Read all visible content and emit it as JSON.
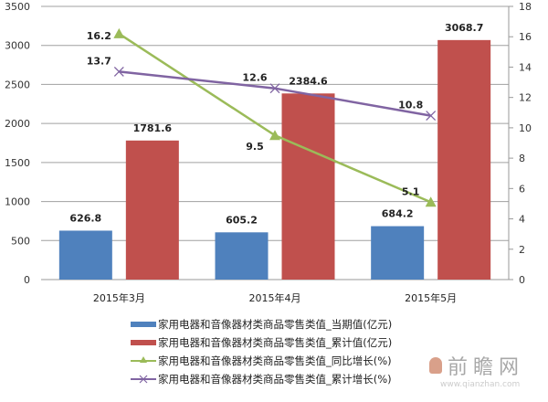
{
  "chart_data": {
    "type": "bar+line",
    "title": "",
    "categories": [
      "2015年3月",
      "2015年4月",
      "2015年5月"
    ],
    "series": [
      {
        "name": "家用电器和音像器材类商品零售类值_当期值(亿元)",
        "type": "bar",
        "axis": "left",
        "color": "#4F81BD",
        "values": [
          626.8,
          605.2,
          684.2
        ]
      },
      {
        "name": "家用电器和音像器材类商品零售类值_累计值(亿元)",
        "type": "bar",
        "axis": "left",
        "color": "#C0504D",
        "values": [
          1781.6,
          2384.6,
          3068.7
        ]
      },
      {
        "name": "家用电器和音像器材类商品零售类值_同比增长(%)",
        "type": "line",
        "axis": "right",
        "color": "#9BBB59",
        "marker": "triangle",
        "values": [
          16.2,
          9.5,
          5.1
        ]
      },
      {
        "name": "家用电器和音像器材类商品零售类值_累计增长(%)",
        "type": "line",
        "axis": "right",
        "color": "#8064A2",
        "marker": "x",
        "values": [
          13.7,
          12.6,
          10.8
        ]
      }
    ],
    "y_left": {
      "min": 0,
      "max": 3500,
      "ticks": [
        0,
        500,
        1000,
        1500,
        2000,
        2500,
        3000,
        3500
      ]
    },
    "y_right": {
      "min": 0,
      "max": 18,
      "ticks": [
        0,
        2,
        4,
        6,
        8,
        10,
        12,
        14,
        16,
        18
      ]
    },
    "grid": true,
    "legend_position": "bottom"
  },
  "legend": [
    {
      "label": "家用电器和音像器材类商品零售类值_当期值(亿元)"
    },
    {
      "label": "家用电器和音像器材类商品零售类值_累计值(亿元)"
    },
    {
      "label": "家用电器和音像器材类商品零售类值_同比增长(%)"
    },
    {
      "label": "家用电器和音像器材类商品零售类值_累计增长(%)"
    }
  ],
  "watermark": {
    "text": "前瞻网",
    "url": "www.qianzhan.com"
  }
}
